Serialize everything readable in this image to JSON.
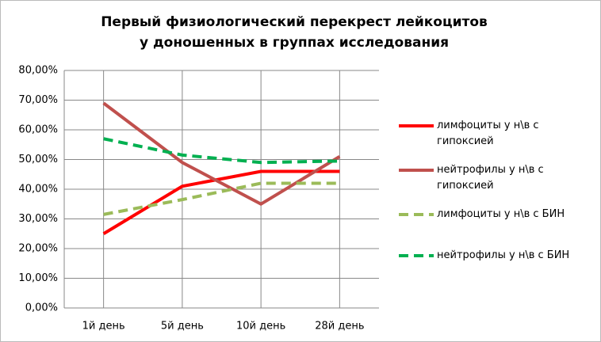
{
  "chart_data": {
    "type": "line",
    "title": "Первый физиологический перекрест лейкоцитов у доношенных в группах исследования",
    "categories": [
      "1й день",
      "5й день",
      "10й день",
      "28й день"
    ],
    "series": [
      {
        "name": "лимфоциты у н\\в с гипоксией",
        "color": "#ff0000",
        "dash": "solid",
        "values": [
          25,
          41,
          46,
          46
        ]
      },
      {
        "name": "нейтрофилы у н\\в с гипоксией",
        "color": "#c0504d",
        "dash": "solid",
        "values": [
          69,
          49,
          35,
          51
        ]
      },
      {
        "name": "лимфоциты у н\\в с БИН",
        "color": "#9bbb59",
        "dash": "dashed",
        "values": [
          31.5,
          36.5,
          42,
          42
        ]
      },
      {
        "name": "нейтрофилы у н\\в с БИН",
        "color": "#00b050",
        "dash": "dashed",
        "values": [
          57,
          51.5,
          49,
          49.5
        ]
      }
    ],
    "ylim": [
      0,
      80
    ],
    "yticks": [
      {
        "value": 0,
        "label": "0,00%"
      },
      {
        "value": 10,
        "label": "10,00%"
      },
      {
        "value": 20,
        "label": "20,00%"
      },
      {
        "value": 30,
        "label": "30,00%"
      },
      {
        "value": 40,
        "label": "40,00%"
      },
      {
        "value": 50,
        "label": "50,00%"
      },
      {
        "value": 60,
        "label": "60,00%"
      },
      {
        "value": 70,
        "label": "70,00%"
      },
      {
        "value": 80,
        "label": "80,00%"
      }
    ],
    "grid": true,
    "legend": "right"
  }
}
